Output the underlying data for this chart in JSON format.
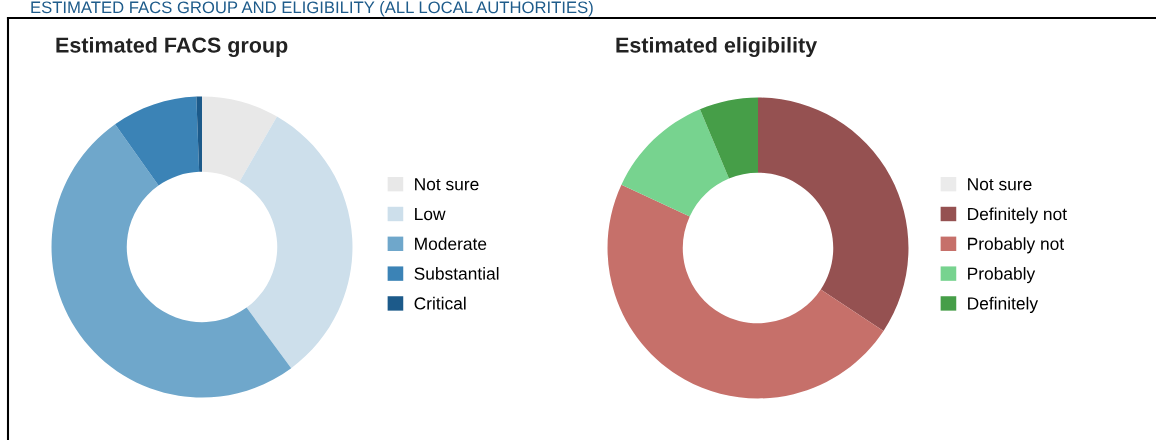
{
  "chart_data": [
    {
      "type": "donut",
      "title": "Estimated FACS group",
      "annotations": [
        "ESTIMATED FACS GROUP AND ELIGIBILITY (ALL LOCAL AUTHORITIES)"
      ],
      "legend": "right",
      "categories": [
        "Not sure",
        "Low",
        "Moderate",
        "Substantial",
        "Critical"
      ],
      "values": [
        8.3,
        31.6,
        50.3,
        9.2,
        0.6
      ],
      "colors": [
        "#e8e8e8",
        "#cddfeb",
        "#6fa7cb",
        "#3b83b6",
        "#1c5a8a"
      ]
    },
    {
      "type": "donut",
      "title": "Estimated eligibility",
      "legend": "right",
      "categories": [
        "Not sure",
        "Definitely not",
        "Probably not",
        "Probably",
        "Definitely"
      ],
      "values": [
        0,
        34.3,
        47.6,
        11.8,
        6.3
      ],
      "colors": [
        "#ebebeb",
        "#955151",
        "#c6706a",
        "#77d38f",
        "#469e48"
      ]
    }
  ]
}
